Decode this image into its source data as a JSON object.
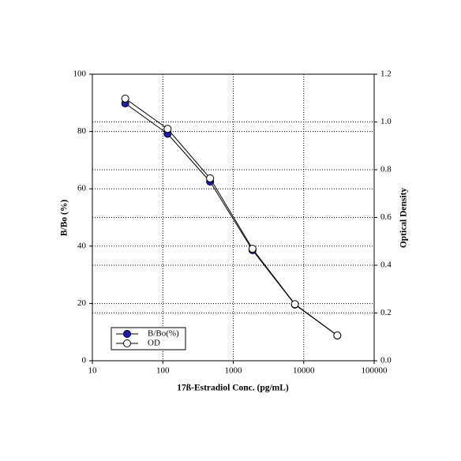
{
  "chart_data": {
    "type": "line",
    "xlabel": "17ß-Estradiol Conc. (pg/mL)",
    "ylabel": "B/Bo (%)",
    "y2label": "Optical Density",
    "x": [
      29.3,
      117,
      469,
      1875,
      7500,
      30000
    ],
    "xscale": "log",
    "xlim": [
      10,
      100000
    ],
    "xticks": [
      10,
      100,
      1000,
      10000,
      100000
    ],
    "ylim": [
      0,
      100
    ],
    "yticks": [
      0,
      20,
      40,
      60,
      80,
      100
    ],
    "y2lim": [
      0,
      1.2
    ],
    "y2ticks": [
      {
        "value": 0,
        "label": "0.0"
      },
      0.2,
      0.4,
      0.6,
      0.8,
      {
        "value": 1,
        "label": "1.0"
      },
      1.2
    ],
    "grid": true,
    "legend": "lower left",
    "series": [
      {
        "name": "B/Bo(%)",
        "color": "#1a1ab8",
        "values": [
          89.8,
          79.2,
          62.5,
          38.6,
          19.6,
          8.8
        ]
      },
      {
        "name": "OD",
        "color": "#ffffff",
        "axis": "y2",
        "values": [
          1.098,
          0.971,
          0.764,
          0.469,
          0.237,
          0.106
        ]
      }
    ]
  }
}
